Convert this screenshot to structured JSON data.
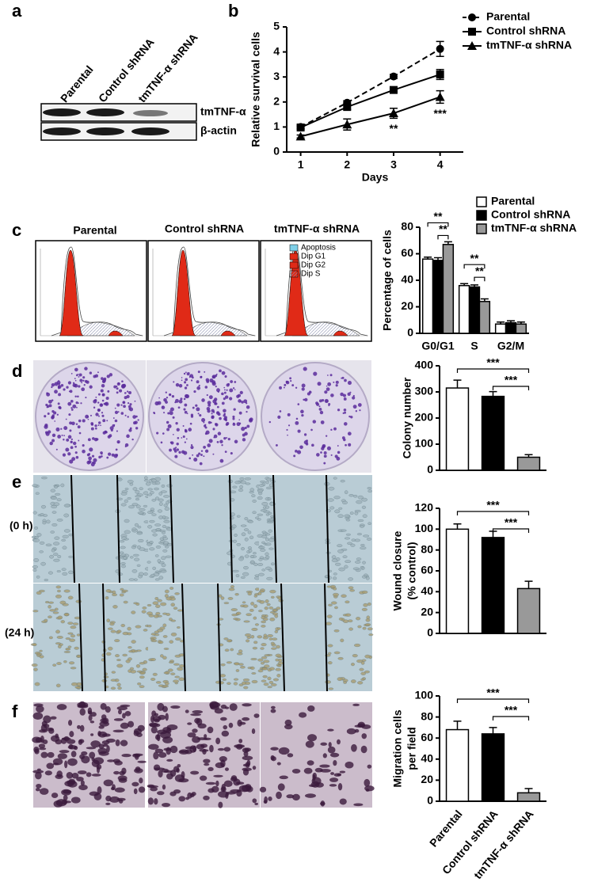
{
  "panels": {
    "a": {
      "letter": "a",
      "lanes": [
        "Parental",
        "Control shRNA",
        "tmTNF-α shRNA"
      ],
      "bands": [
        "tmTNF-α",
        "β-actin"
      ]
    },
    "b": {
      "letter": "b"
    },
    "c": {
      "letter": "c",
      "histograms": [
        "Parental",
        "Control shRNA",
        "tmTNF-α shRNA"
      ],
      "legend": [
        "Apoptosis",
        "Dip G1",
        "Dip G2",
        "Dip S"
      ]
    },
    "d": {
      "letter": "d"
    },
    "e": {
      "letter": "e",
      "times": [
        "(0 h)",
        "(24 h)"
      ]
    },
    "f": {
      "letter": "f"
    }
  },
  "chart_data": [
    {
      "type": "line",
      "ylabel": "Relative survival cells",
      "xlabel": "Days",
      "x": [
        1,
        2,
        3,
        4
      ],
      "xlim": [
        0.7,
        4.5
      ],
      "xticks": [
        1,
        2,
        3,
        4
      ],
      "ylim": [
        0,
        5
      ],
      "yticks": [
        0,
        1,
        2,
        3,
        4,
        5
      ],
      "series": [
        {
          "name": "Parental",
          "color": "#000000",
          "dashed": true,
          "marker": "circle",
          "values": [
            1.0,
            1.97,
            3.02,
            4.12
          ],
          "errors": [
            0.08,
            0.08,
            0.08,
            0.3
          ]
        },
        {
          "name": "Control shRNA",
          "color": "#000000",
          "dashed": false,
          "marker": "square",
          "values": [
            0.98,
            1.8,
            2.48,
            3.1
          ],
          "errors": [
            0.06,
            0.1,
            0.08,
            0.2
          ]
        },
        {
          "name": "tmTNF-α shRNA",
          "color": "#000000",
          "dashed": false,
          "marker": "triangle",
          "values": [
            0.62,
            1.1,
            1.55,
            2.2
          ],
          "errors": [
            0.06,
            0.22,
            0.2,
            0.25
          ]
        }
      ],
      "annotations": [
        "**",
        "***"
      ]
    },
    {
      "type": "bar",
      "ylabel": "Percentage of cells",
      "categories": [
        "G0/G1",
        "S",
        "G2/M"
      ],
      "ylim": [
        0,
        80
      ],
      "yticks": [
        0,
        20,
        40,
        60,
        80
      ],
      "series": [
        {
          "name": "Parental",
          "color": "#ffffff",
          "values": [
            56,
            36,
            7
          ],
          "errors": [
            1.5,
            1.5,
            1.5
          ]
        },
        {
          "name": "Control shRNA",
          "color": "#000000",
          "values": [
            55,
            35,
            8
          ],
          "errors": [
            2,
            1.5,
            1.5
          ]
        },
        {
          "name": "tmTNF-α shRNA",
          "color": "#999999",
          "values": [
            67,
            24,
            7
          ],
          "errors": [
            2,
            2,
            1.5
          ]
        }
      ],
      "significance": [
        "**",
        "**",
        "**",
        "**"
      ]
    },
    {
      "type": "bar",
      "ylabel": "Colony number",
      "ylim": [
        0,
        400
      ],
      "yticks": [
        0,
        100,
        200,
        300,
        400
      ],
      "values": [
        315,
        283,
        50
      ],
      "errors": [
        30,
        18,
        10
      ],
      "colors": [
        "#ffffff",
        "#000000",
        "#999999"
      ],
      "significance": [
        "***",
        "***"
      ]
    },
    {
      "type": "bar",
      "ylabel": [
        "Wound closure",
        "(% control)"
      ],
      "ylim": [
        0,
        120
      ],
      "yticks": [
        0,
        20,
        40,
        60,
        80,
        100,
        120
      ],
      "values": [
        100,
        92,
        43
      ],
      "errors": [
        5,
        6,
        7
      ],
      "colors": [
        "#ffffff",
        "#000000",
        "#999999"
      ],
      "significance": [
        "***",
        "***"
      ]
    },
    {
      "type": "bar",
      "ylabel": [
        "Migration cells",
        "per field"
      ],
      "ylim": [
        0,
        100
      ],
      "yticks": [
        0,
        20,
        40,
        60,
        80,
        100
      ],
      "categories": [
        "Parental",
        "Control shRNA",
        "tmTNF-α shRNA"
      ],
      "values": [
        68,
        64,
        8
      ],
      "errors": [
        8,
        6,
        4
      ],
      "colors": [
        "#ffffff",
        "#000000",
        "#999999"
      ],
      "significance": [
        "***",
        "***"
      ]
    }
  ]
}
